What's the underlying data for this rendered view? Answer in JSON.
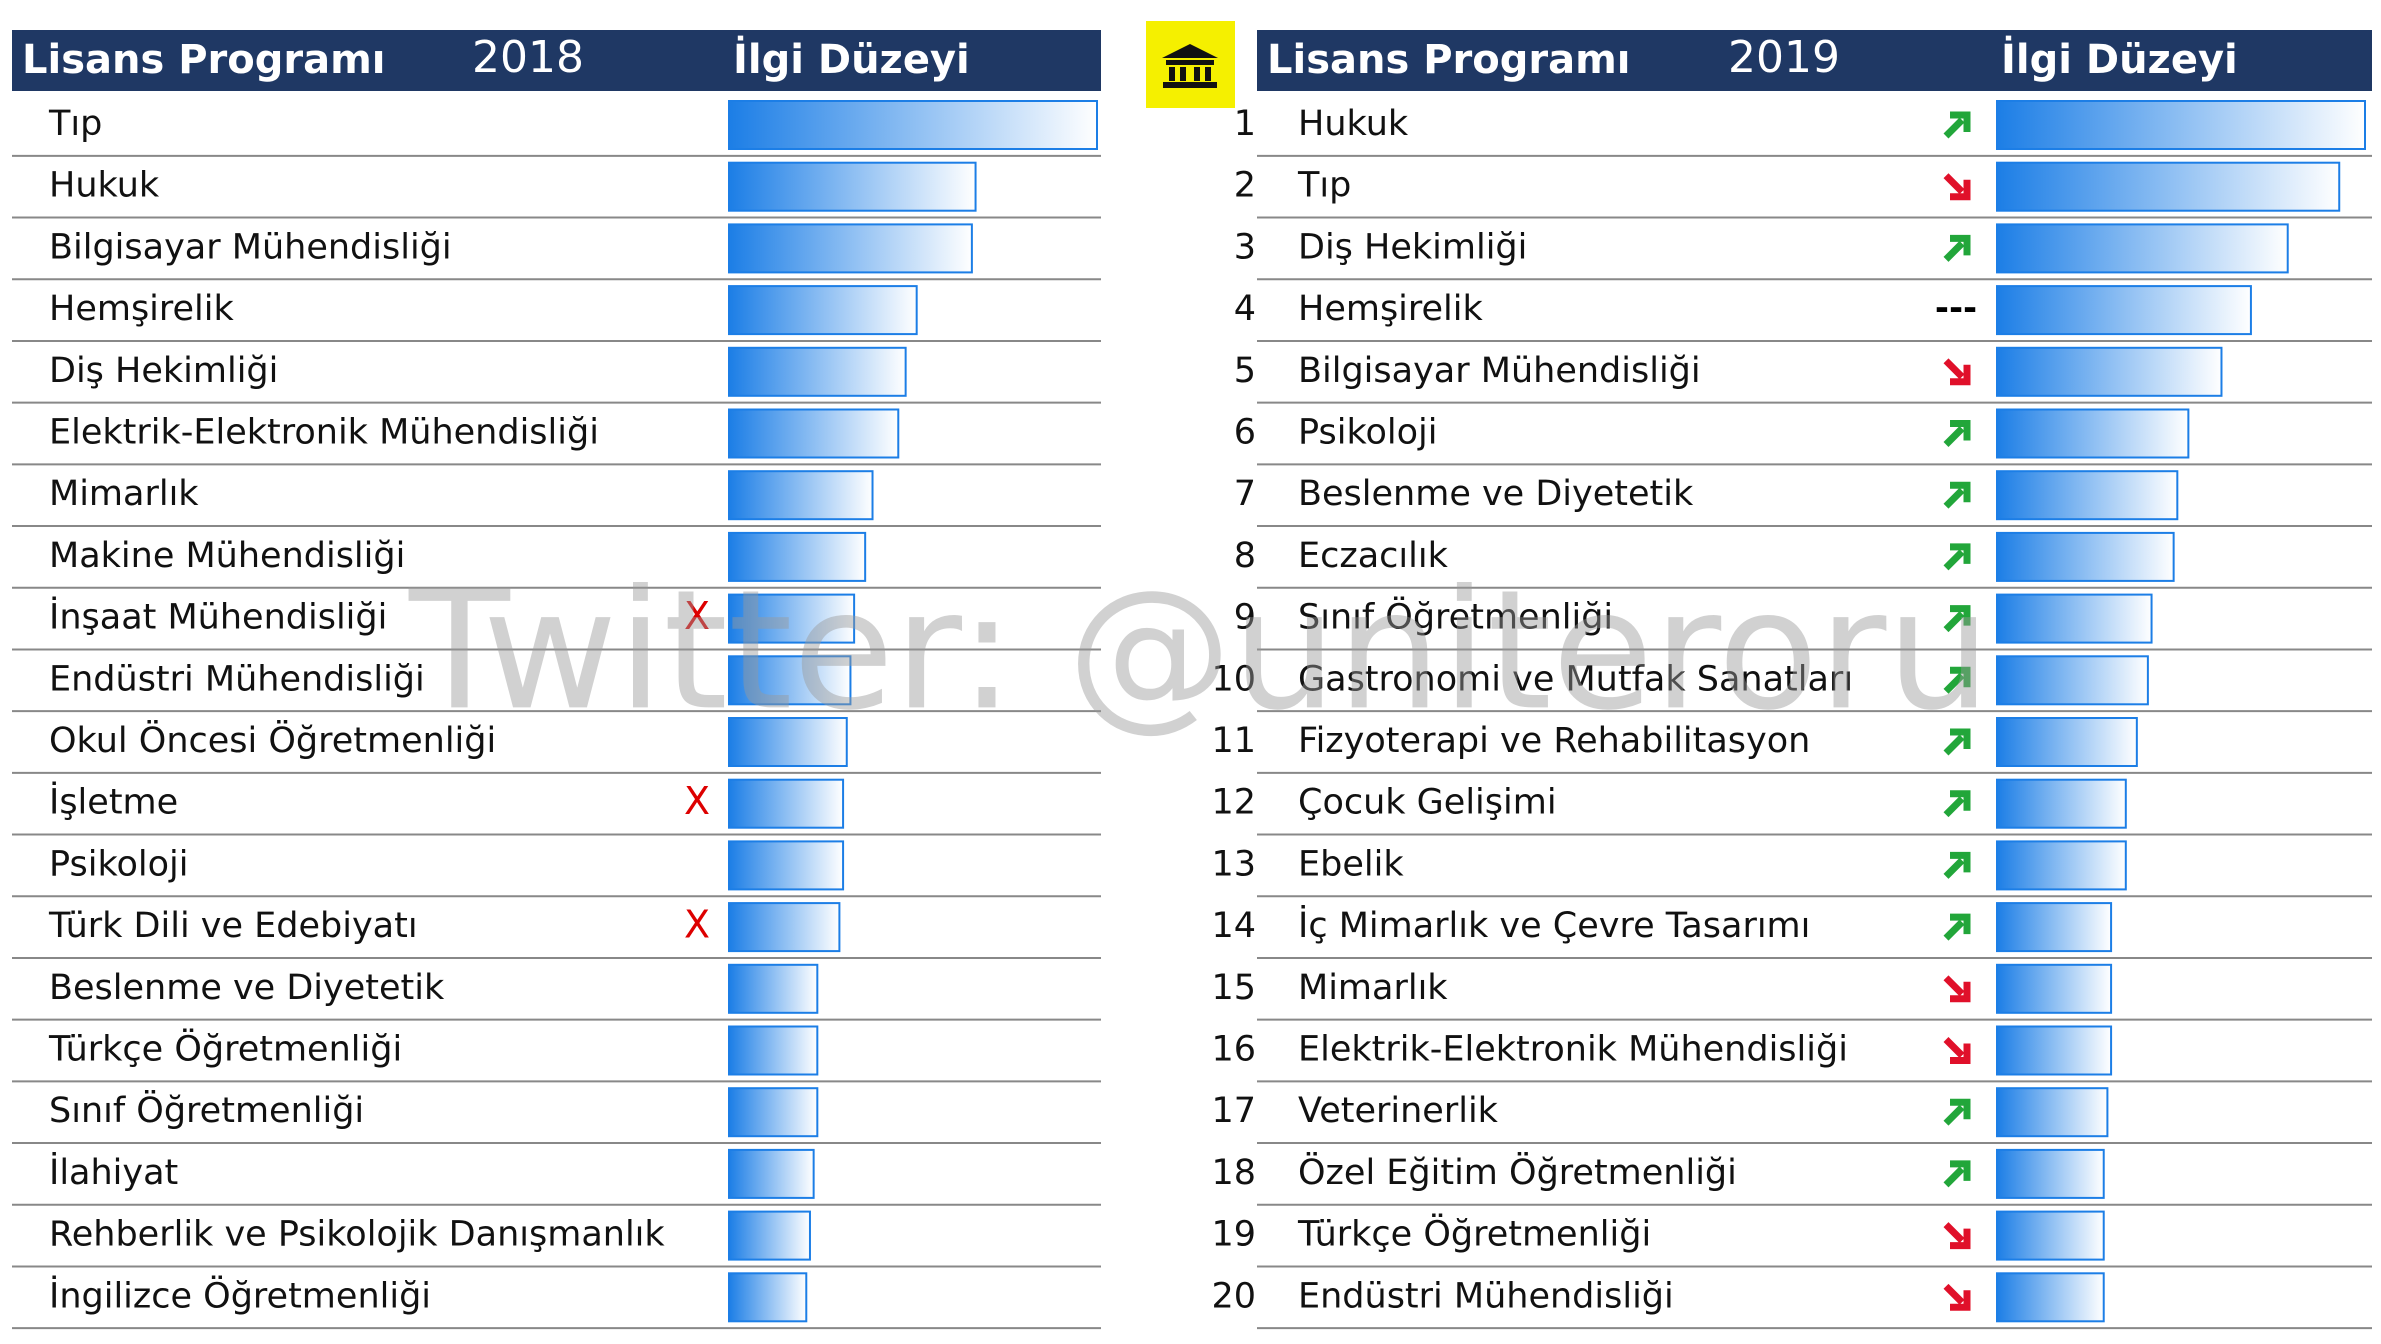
{
  "chart_data": [
    {
      "type": "ranked-bar",
      "header": {
        "program": "Lisans Programı",
        "year": "2018",
        "level": "İlgi Düzeyi"
      },
      "categories": [
        "Tıp",
        "Hukuk",
        "Bilgisayar Mühendisliği",
        "Hemşirelik",
        "Diş Hekimliği",
        "Elektrik-Elektronik Mühendisliği",
        "Mimarlık",
        "Makine Mühendisliği",
        "İnşaat Mühendisliği",
        "Endüstri Mühendisliği",
        "Okul Öncesi Öğretmenliği",
        "İşletme",
        "Psikoloji",
        "Türk Dili ve Edebiyatı",
        "Beslenme ve Diyetetik",
        "Türkçe Öğretmenliği",
        "Sınıf Öğretmenliği",
        "İlahiyat",
        "Rehberlik ve Psikolojik Danışmanlık",
        "İngilizce Öğretmenliği"
      ],
      "values": [
        100,
        67,
        66,
        51,
        48,
        46,
        39,
        37,
        34,
        33,
        32,
        31,
        31,
        30,
        24,
        24,
        24,
        23,
        22,
        21
      ],
      "flags": [
        null,
        null,
        null,
        null,
        null,
        null,
        null,
        null,
        "X",
        null,
        null,
        "X",
        null,
        "X",
        null,
        null,
        null,
        null,
        null,
        null
      ],
      "color": "#1c7ee6"
    },
    {
      "type": "ranked-bar",
      "header": {
        "program": "Lisans Programı",
        "year": "2019",
        "level": "İlgi Düzeyi"
      },
      "ranks": [
        1,
        2,
        3,
        4,
        5,
        6,
        7,
        8,
        9,
        10,
        11,
        12,
        13,
        14,
        15,
        16,
        17,
        18,
        19,
        20
      ],
      "categories": [
        "Hukuk",
        "Tıp",
        "Diş Hekimliği",
        "Hemşirelik",
        "Bilgisayar Mühendisliği",
        "Psikoloji",
        "Beslenme ve Diyetetik",
        "Eczacılık",
        "Sınıf Öğretmenliği",
        "Gastronomi ve Mutfak Sanatları",
        "Fizyoterapi ve Rehabilitasyon",
        "Çocuk Gelişimi",
        "Ebelik",
        "İç Mimarlık ve Çevre Tasarımı",
        "Mimarlık",
        "Elektrik-Elektronik Mühendisliği",
        "Veterinerlik",
        "Özel Eğitim Öğretmenliği",
        "Türkçe Öğretmenliği",
        "Endüstri Mühendisliği"
      ],
      "values": [
        100,
        93,
        79,
        69,
        61,
        52,
        49,
        48,
        42,
        41,
        38,
        35,
        35,
        31,
        31,
        31,
        30,
        29,
        29,
        29
      ],
      "trends": [
        "up",
        "down",
        "up",
        "---",
        "down",
        "up",
        "up",
        "up",
        "up",
        "up",
        "up",
        "up",
        "up",
        "up",
        "down",
        "down",
        "up",
        "up",
        "down",
        "down"
      ],
      "color": "#1c7ee6"
    }
  ],
  "watermark": "Twitter: @uniteroru"
}
